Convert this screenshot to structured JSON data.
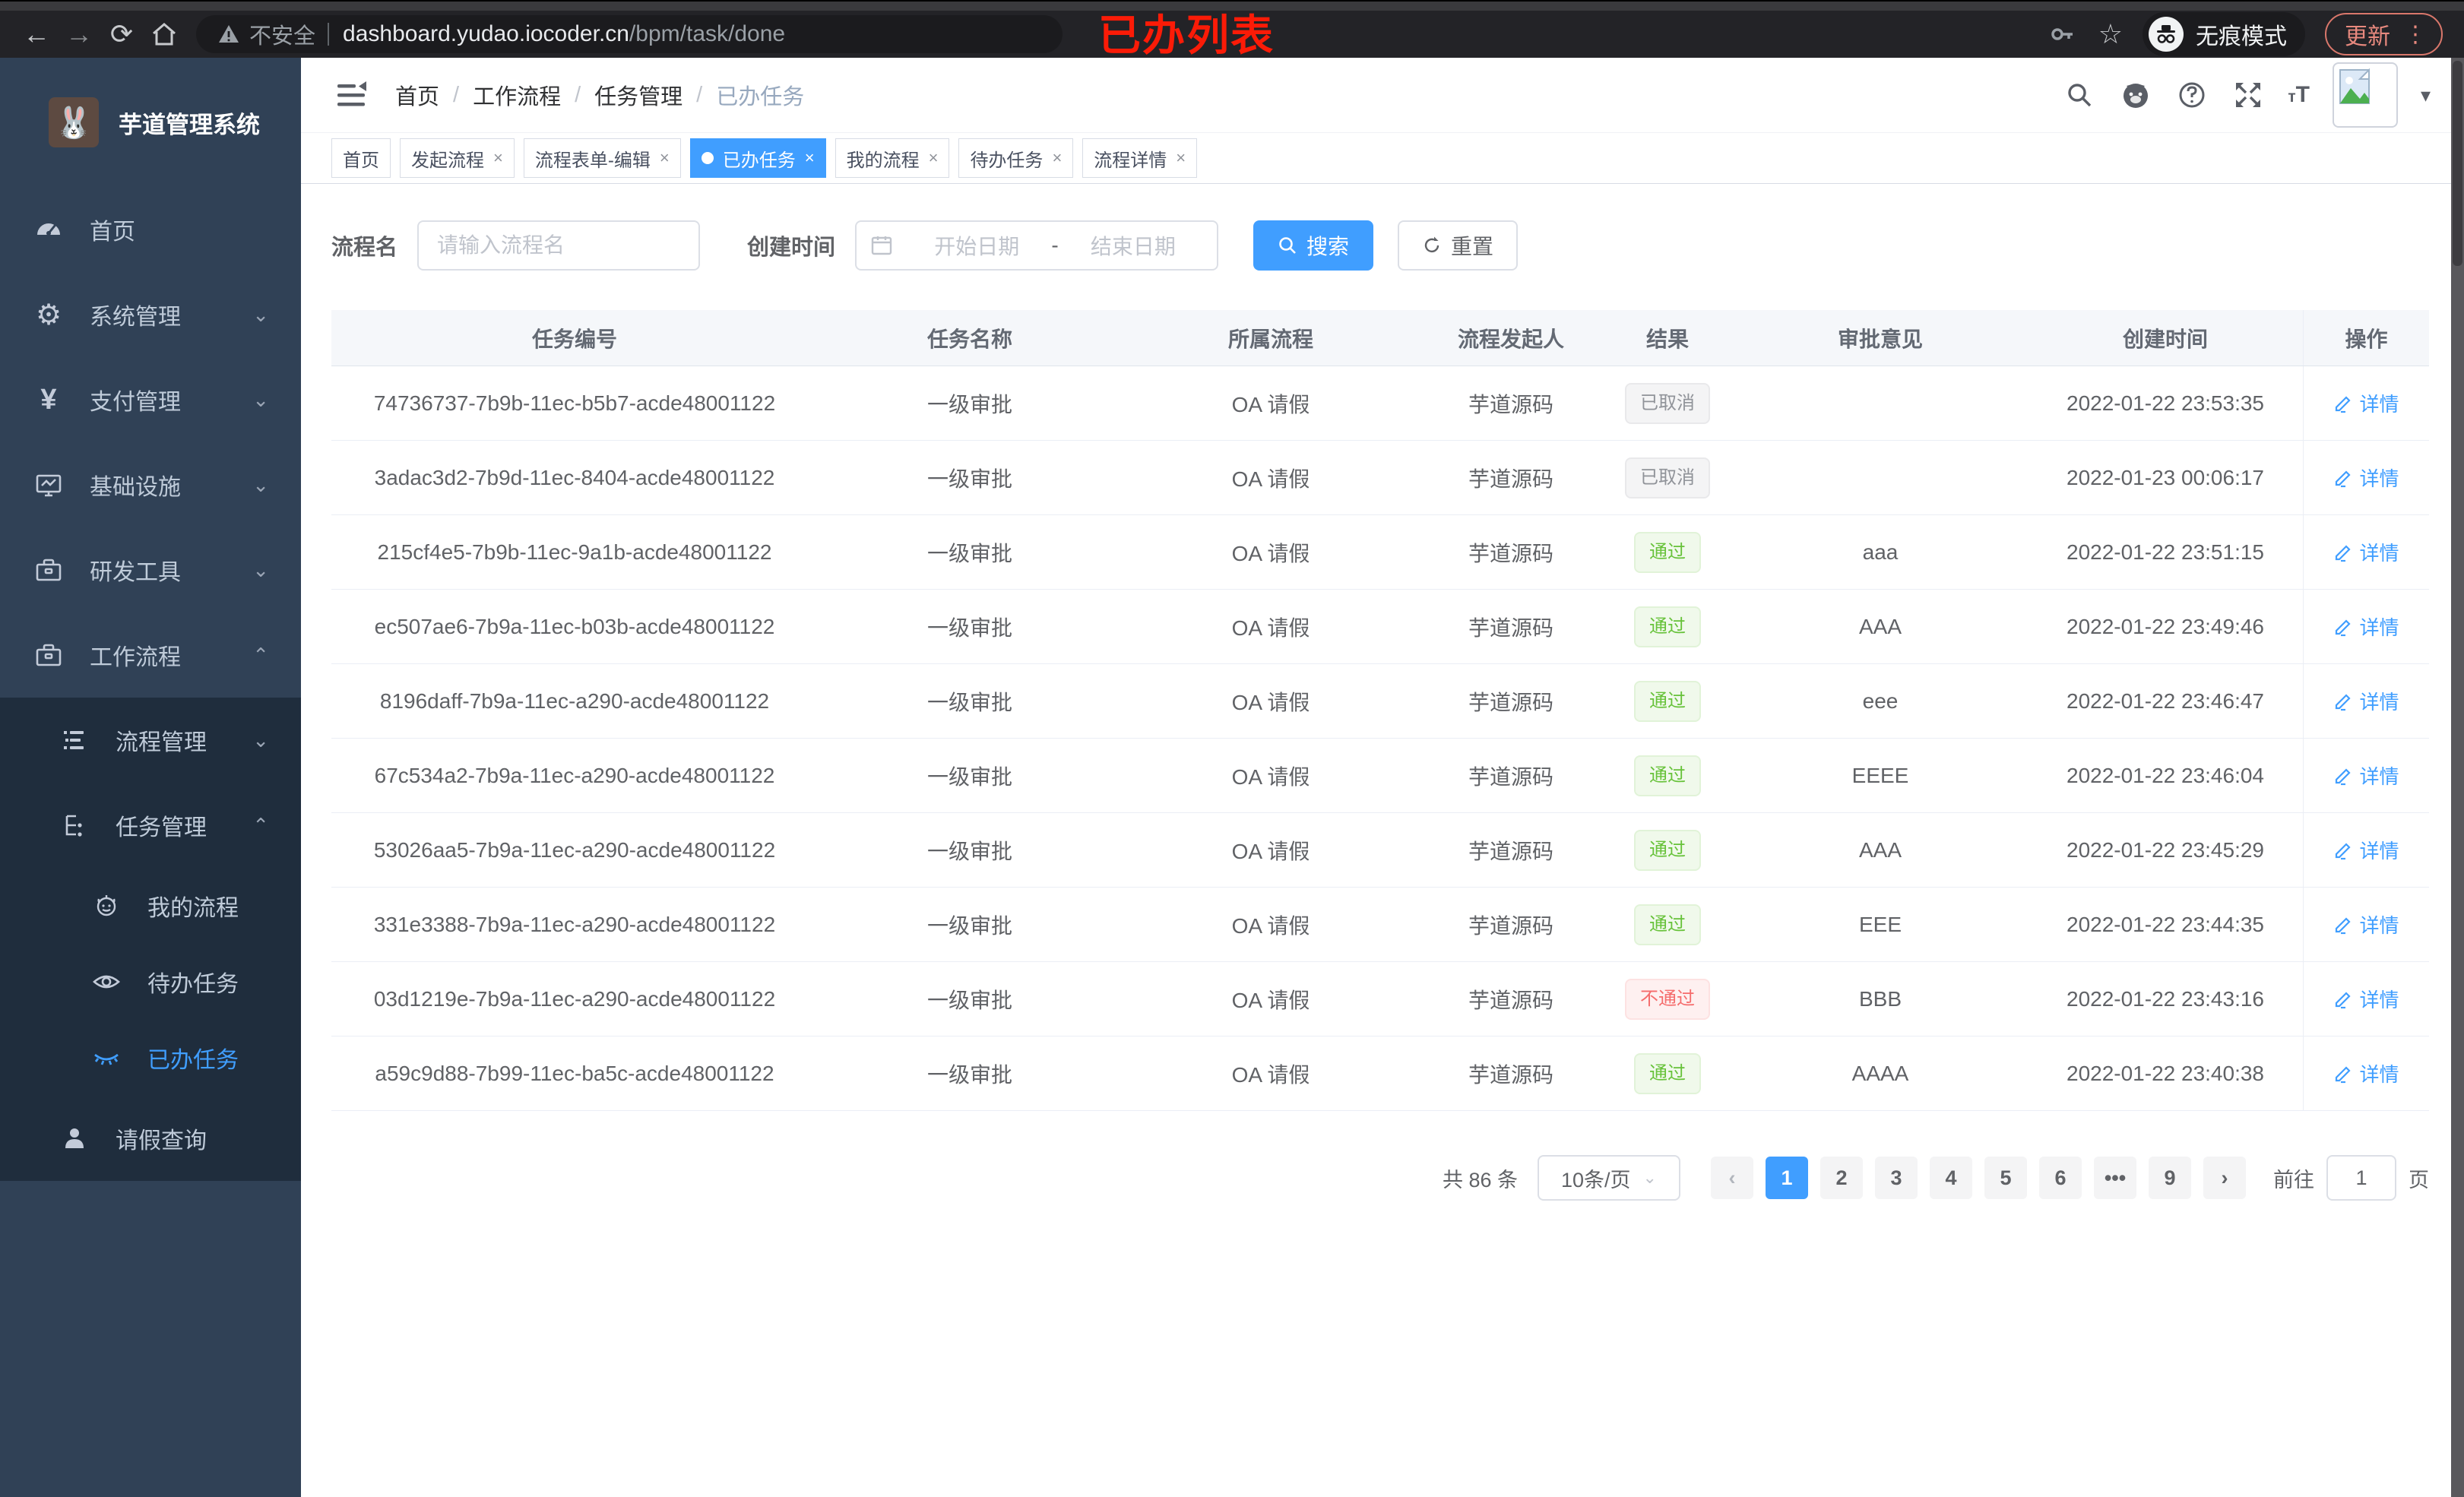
{
  "annotation": {
    "text": "已办列表"
  },
  "browser": {
    "security": "不安全",
    "host": "dashboard.yudao.iocoder.cn",
    "path": "/bpm/task/done",
    "incognito_label": "无痕模式",
    "update_label": "更新",
    "kebab": "⋮",
    "back": "←",
    "forward": "→",
    "reload": "⟳",
    "star": "☆"
  },
  "sidebar": {
    "app_title": "芋道管理系统",
    "items": [
      {
        "label": "首页"
      },
      {
        "label": "系统管理"
      },
      {
        "label": "支付管理"
      },
      {
        "label": "基础设施"
      },
      {
        "label": "研发工具"
      },
      {
        "label": "工作流程"
      },
      {
        "label": "流程管理"
      },
      {
        "label": "任务管理"
      },
      {
        "label": "我的流程"
      },
      {
        "label": "待办任务"
      },
      {
        "label": "已办任务",
        "active": true
      },
      {
        "label": "请假查询"
      }
    ],
    "chevron_down": "⌄",
    "chevron_up": "⌃"
  },
  "navbar": {
    "breadcrumb": [
      "首页",
      "工作流程",
      "任务管理",
      "已办任务"
    ],
    "separator": "/",
    "font_icon_small": "т",
    "font_icon_big": "T",
    "caret": "▾"
  },
  "tabs": [
    {
      "label": "首页",
      "closable": false,
      "active": false
    },
    {
      "label": "发起流程",
      "closable": true,
      "active": false
    },
    {
      "label": "流程表单-编辑",
      "closable": true,
      "active": false
    },
    {
      "label": "已办任务",
      "closable": true,
      "active": true
    },
    {
      "label": "我的流程",
      "closable": true,
      "active": false
    },
    {
      "label": "待办任务",
      "closable": true,
      "active": false
    },
    {
      "label": "流程详情",
      "closable": true,
      "active": false
    }
  ],
  "tab_close_glyph": "×",
  "filters": {
    "name_label": "流程名",
    "name_placeholder": "请输入流程名",
    "time_label": "创建时间",
    "start_placeholder": "开始日期",
    "range_separator": "-",
    "end_placeholder": "结束日期",
    "search_label": "搜索",
    "reset_label": "重置"
  },
  "table": {
    "columns": [
      "任务编号",
      "任务名称",
      "所属流程",
      "流程发起人",
      "结果",
      "审批意见",
      "创建时间",
      "操作"
    ],
    "action_label": "详情",
    "rows": [
      {
        "id": "74736737-7b9b-11ec-b5b7-acde48001122",
        "name": "一级审批",
        "process": "OA 请假",
        "starter": "芋道源码",
        "result": "已取消",
        "result_type": "info",
        "opinion": "",
        "time": "2022-01-22 23:53:35"
      },
      {
        "id": "3adac3d2-7b9d-11ec-8404-acde48001122",
        "name": "一级审批",
        "process": "OA 请假",
        "starter": "芋道源码",
        "result": "已取消",
        "result_type": "info",
        "opinion": "",
        "time": "2022-01-23 00:06:17"
      },
      {
        "id": "215cf4e5-7b9b-11ec-9a1b-acde48001122",
        "name": "一级审批",
        "process": "OA 请假",
        "starter": "芋道源码",
        "result": "通过",
        "result_type": "success",
        "opinion": "aaa",
        "time": "2022-01-22 23:51:15"
      },
      {
        "id": "ec507ae6-7b9a-11ec-b03b-acde48001122",
        "name": "一级审批",
        "process": "OA 请假",
        "starter": "芋道源码",
        "result": "通过",
        "result_type": "success",
        "opinion": "AAA",
        "time": "2022-01-22 23:49:46"
      },
      {
        "id": "8196daff-7b9a-11ec-a290-acde48001122",
        "name": "一级审批",
        "process": "OA 请假",
        "starter": "芋道源码",
        "result": "通过",
        "result_type": "success",
        "opinion": "eee",
        "time": "2022-01-22 23:46:47"
      },
      {
        "id": "67c534a2-7b9a-11ec-a290-acde48001122",
        "name": "一级审批",
        "process": "OA 请假",
        "starter": "芋道源码",
        "result": "通过",
        "result_type": "success",
        "opinion": "EEEE",
        "time": "2022-01-22 23:46:04"
      },
      {
        "id": "53026aa5-7b9a-11ec-a290-acde48001122",
        "name": "一级审批",
        "process": "OA 请假",
        "starter": "芋道源码",
        "result": "通过",
        "result_type": "success",
        "opinion": "AAA",
        "time": "2022-01-22 23:45:29"
      },
      {
        "id": "331e3388-7b9a-11ec-a290-acde48001122",
        "name": "一级审批",
        "process": "OA 请假",
        "starter": "芋道源码",
        "result": "通过",
        "result_type": "success",
        "opinion": "EEE",
        "time": "2022-01-22 23:44:35"
      },
      {
        "id": "03d1219e-7b9a-11ec-a290-acde48001122",
        "name": "一级审批",
        "process": "OA 请假",
        "starter": "芋道源码",
        "result": "不通过",
        "result_type": "danger",
        "opinion": "BBB",
        "time": "2022-01-22 23:43:16"
      },
      {
        "id": "a59c9d88-7b99-11ec-ba5c-acde48001122",
        "name": "一级审批",
        "process": "OA 请假",
        "starter": "芋道源码",
        "result": "通过",
        "result_type": "success",
        "opinion": "AAAA",
        "time": "2022-01-22 23:40:38"
      }
    ]
  },
  "pagination": {
    "total_text": "共 86 条",
    "page_size": "10条/页",
    "prev": "‹",
    "next": "›",
    "pages": [
      "1",
      "2",
      "3",
      "4",
      "5",
      "6",
      "...",
      "9"
    ],
    "active": "1",
    "jumper_prefix": "前往",
    "jumper_value": "1",
    "jumper_suffix": "页"
  },
  "colors": {
    "accent": "#409eff",
    "sidebar_bg": "#304156",
    "submenu_bg": "#1f2d3d",
    "success": "#67c23a",
    "danger": "#f56c6c",
    "info": "#909399",
    "annotation_red": "#fb1b07"
  }
}
